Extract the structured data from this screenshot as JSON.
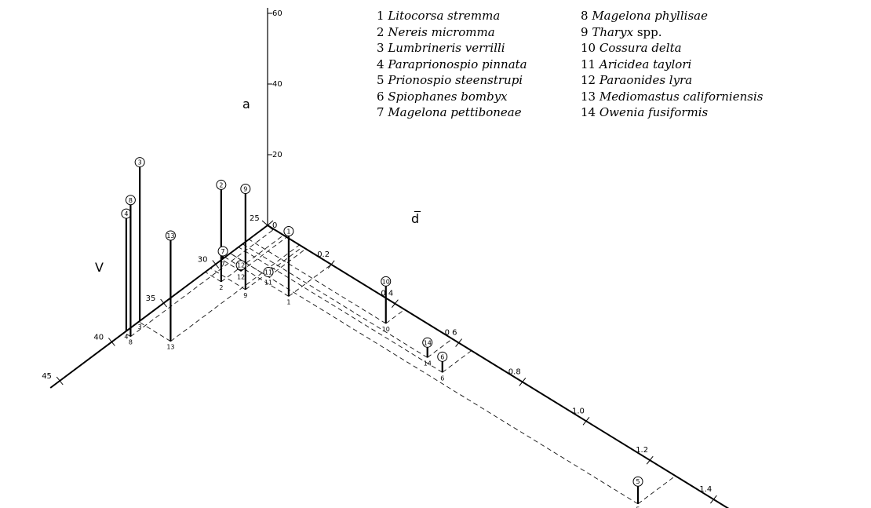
{
  "chart_data": {
    "type": "3d-stem",
    "axes": {
      "a": {
        "label": "a",
        "ticks": [
          "0",
          "20",
          "40",
          "60"
        ],
        "range": [
          0,
          60
        ]
      },
      "V": {
        "label": "V",
        "ticks": [
          "25",
          "30",
          "35",
          "40",
          "45"
        ],
        "range": [
          25,
          45
        ]
      },
      "d": {
        "label": "d̅",
        "ticks": [
          "0.2",
          "0 4",
          "0 6",
          "0.8",
          "1.0",
          "1.2",
          "1.4"
        ],
        "range": [
          0,
          1.4
        ]
      }
    },
    "points": [
      {
        "id": "1",
        "V": 29.1,
        "d": 0.2,
        "a": 17.1
      },
      {
        "id": "2",
        "V": 31.0,
        "d": 0.05,
        "a": 26.1
      },
      {
        "id": "3",
        "V": 37.3,
        "d": 0.0,
        "a": 43.6
      },
      {
        "id": "4",
        "V": 38.6,
        "d": 0.0,
        "a": 31.9
      },
      {
        "id": "5",
        "V": 28.6,
        "d": 1.28,
        "a": 5.0
      },
      {
        "id": "6",
        "V": 27.8,
        "d": 0.64,
        "a": 3.1
      },
      {
        "id": "7",
        "V": 29.3,
        "d": 0.0,
        "a": 0.8
      },
      {
        "id": "8",
        "V": 38.8,
        "d": 0.02,
        "a": 37.3
      },
      {
        "id": "9",
        "V": 30.5,
        "d": 0.11,
        "a": 27.2
      },
      {
        "id": "10",
        "V": 26.8,
        "d": 0.43,
        "a": 10.6
      },
      {
        "id": "11",
        "V": 28.6,
        "d": 0.12,
        "a": 0.0
      },
      {
        "id": "12",
        "V": 29.4,
        "d": 0.06,
        "a": 0.4
      },
      {
        "id": "13",
        "V": 37.4,
        "d": 0.1,
        "a": 28.6
      },
      {
        "id": "14",
        "V": 27.4,
        "d": 0.58,
        "a": 2.9
      }
    ]
  },
  "legend": {
    "col1": [
      {
        "num": "1",
        "name": "Litocorsa stremma",
        "suffix": ""
      },
      {
        "num": "2",
        "name": "Nereis micromma",
        "suffix": ""
      },
      {
        "num": "3",
        "name": "Lumbrineris verrilli",
        "suffix": ""
      },
      {
        "num": "4",
        "name": "Paraprionospio pinnata",
        "suffix": ""
      },
      {
        "num": "5",
        "name": "Prionospio steenstrupi",
        "suffix": ""
      },
      {
        "num": "6",
        "name": "Spiophanes bombyx",
        "suffix": ""
      },
      {
        "num": "7",
        "name": "Magelona pettiboneae",
        "suffix": ""
      }
    ],
    "col2": [
      {
        "num": "8",
        "name": "Magelona phyllisae",
        "suffix": ""
      },
      {
        "num": "9",
        "name": "Tharyx",
        "suffix": " spp."
      },
      {
        "num": "10",
        "name": "Cossura delta",
        "suffix": ""
      },
      {
        "num": "11",
        "name": "Aricidea taylori",
        "suffix": ""
      },
      {
        "num": "12",
        "name": "Paraonides lyra",
        "suffix": ""
      },
      {
        "num": "13",
        "name": "Mediomastus californiensis",
        "suffix": ""
      },
      {
        "num": "14",
        "name": "Owenia fusiformis",
        "suffix": ""
      }
    ]
  }
}
